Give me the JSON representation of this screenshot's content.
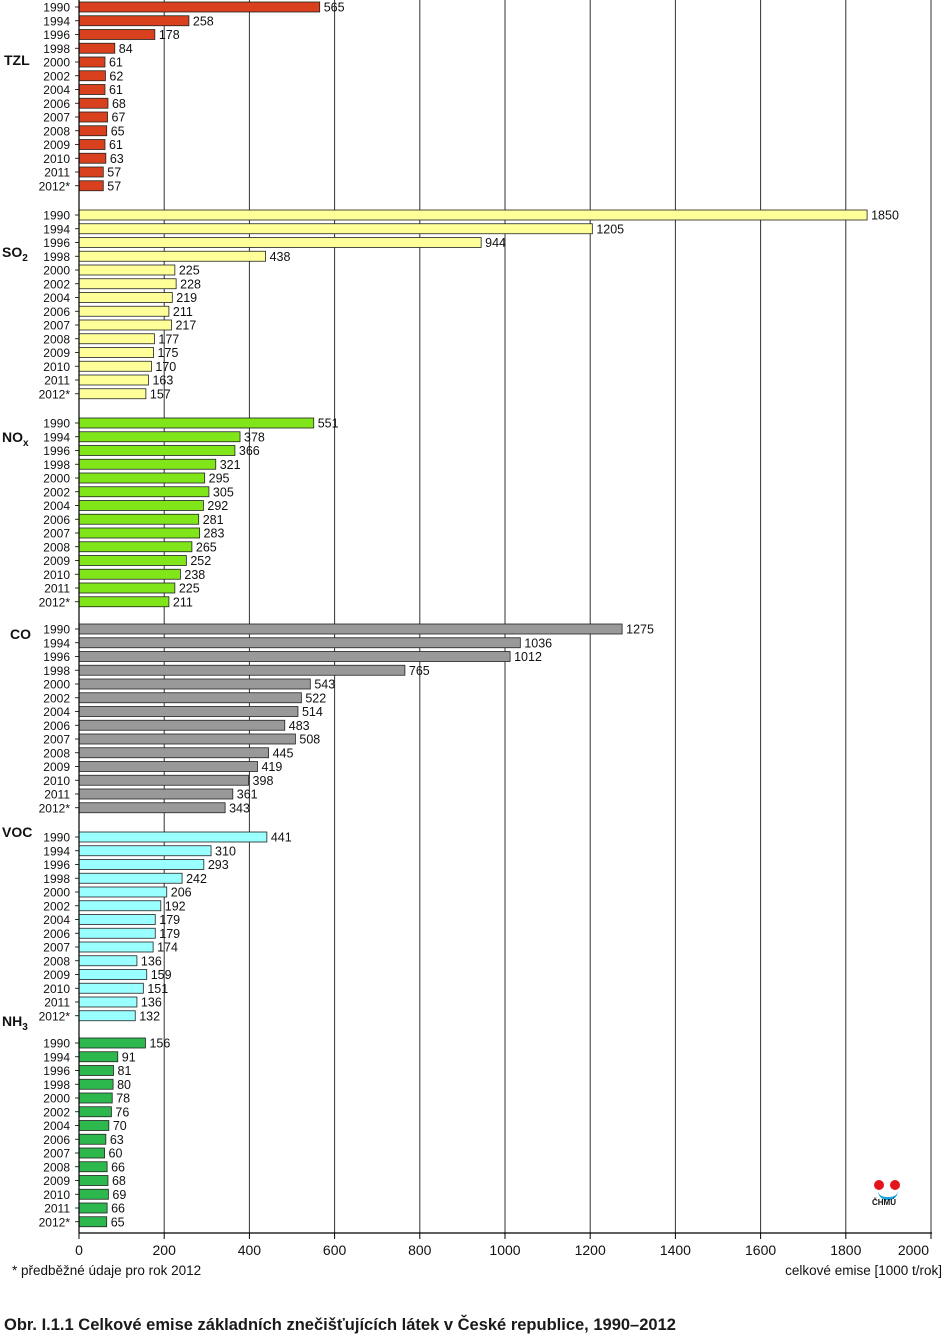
{
  "chart_data": {
    "type": "bar",
    "orientation": "horizontal",
    "xlabel": "celkové emise [1000 t/rok]",
    "xlim": [
      0,
      2000
    ],
    "x_ticks": [
      "0",
      "200",
      "400",
      "600",
      "800",
      "1000",
      "1200",
      "1400",
      "1600",
      "1800",
      "2000"
    ],
    "grid": true,
    "categories": [
      "1990",
      "1994",
      "1996",
      "1998",
      "2000",
      "2002",
      "2004",
      "2006",
      "2007",
      "2008",
      "2009",
      "2010",
      "2011",
      "2012*"
    ],
    "groups": [
      {
        "name": "TZL",
        "sub": "",
        "color": "#d9411e",
        "values": [
          565,
          258,
          178,
          84,
          61,
          62,
          61,
          68,
          67,
          65,
          61,
          63,
          57,
          57
        ]
      },
      {
        "name": "SO",
        "sub": "2",
        "color": "#ffff99",
        "values": [
          1850,
          1205,
          944,
          438,
          225,
          228,
          219,
          211,
          217,
          177,
          175,
          170,
          163,
          157
        ]
      },
      {
        "name": "NO",
        "sub": "x",
        "color": "#80e61a",
        "values": [
          551,
          378,
          366,
          321,
          295,
          305,
          292,
          281,
          283,
          265,
          252,
          238,
          225,
          211
        ]
      },
      {
        "name": "CO",
        "sub": "",
        "color": "#999999",
        "values": [
          1275,
          1036,
          1012,
          765,
          543,
          522,
          514,
          483,
          508,
          445,
          419,
          398,
          361,
          343
        ]
      },
      {
        "name": "VOC",
        "sub": "",
        "color": "#99ffff",
        "values": [
          441,
          310,
          293,
          242,
          206,
          192,
          179,
          179,
          174,
          136,
          159,
          151,
          136,
          132
        ]
      },
      {
        "name": "NH",
        "sub": "3",
        "color": "#2db84d",
        "values": [
          156,
          91,
          81,
          80,
          78,
          76,
          70,
          63,
          60,
          66,
          68,
          69,
          66,
          65
        ]
      }
    ]
  },
  "footnote": "*   předběžné údaje pro rok 2012",
  "caption": "Obr. I.1.1  Celkové emise základních znečišťujících látek v České republice, 1990–2012",
  "logo_text": "ČHMÚ"
}
